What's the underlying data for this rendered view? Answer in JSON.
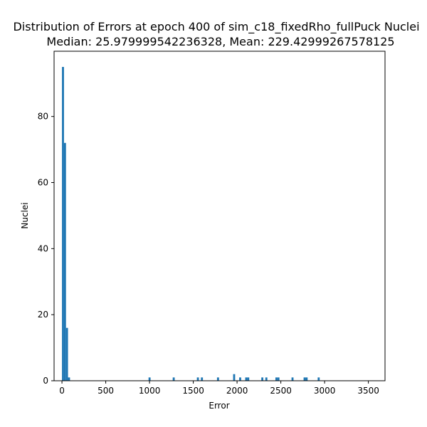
{
  "chart_data": {
    "type": "bar",
    "title": "Distribution of Errors at epoch 400 of sim_c18_fixedRho_fullPuck Nuclei",
    "subtitle": "Median: 25.979999542236328, Mean: 229.42999267578125",
    "xlabel": "Error",
    "ylabel": "Nuclei",
    "xlim": [
      -90,
      3690
    ],
    "ylim": [
      0,
      99.75
    ],
    "xticks": [
      0,
      500,
      1000,
      1500,
      2000,
      2500,
      3000,
      3500
    ],
    "yticks": [
      0,
      20,
      40,
      60,
      80
    ],
    "bin_width": 23,
    "grid": false,
    "bars": [
      {
        "x": 0,
        "value": 95
      },
      {
        "x": 23,
        "value": 72
      },
      {
        "x": 46,
        "value": 16
      },
      {
        "x": 69,
        "value": 1
      },
      {
        "x": 989,
        "value": 1
      },
      {
        "x": 1265,
        "value": 1
      },
      {
        "x": 1541,
        "value": 1
      },
      {
        "x": 1587,
        "value": 1
      },
      {
        "x": 1771,
        "value": 1
      },
      {
        "x": 1955,
        "value": 2
      },
      {
        "x": 2024,
        "value": 1
      },
      {
        "x": 2093,
        "value": 1
      },
      {
        "x": 2116,
        "value": 1
      },
      {
        "x": 2277,
        "value": 1
      },
      {
        "x": 2323,
        "value": 1
      },
      {
        "x": 2438,
        "value": 1
      },
      {
        "x": 2461,
        "value": 1
      },
      {
        "x": 2622,
        "value": 1
      },
      {
        "x": 2760,
        "value": 1
      },
      {
        "x": 2783,
        "value": 1
      },
      {
        "x": 2921,
        "value": 1
      }
    ],
    "bar_color": "#1f77b4"
  }
}
